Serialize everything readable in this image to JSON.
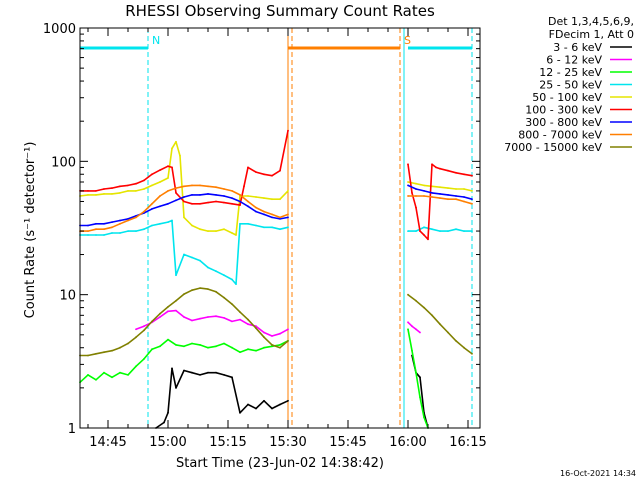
{
  "chart_data": {
    "type": "line",
    "title": "RHESSI Observing Summary Count Rates",
    "xlabel": "Start Time (23-Jun-02 14:38:42)",
    "ylabel": "Count Rate (s⁻¹ detector⁻¹)",
    "yscale": "log",
    "ylim": [
      1,
      1000
    ],
    "xlim": [
      "14:38",
      "16:18"
    ],
    "x_ticks": [
      "14:45",
      "15:00",
      "15:15",
      "15:30",
      "15:45",
      "16:00",
      "16:15"
    ],
    "y_ticks": [
      "1",
      "10",
      "100",
      "1000"
    ],
    "legend_header": [
      "Det 1,3,4,5,6,9,",
      "FDecim 1, Att 0"
    ],
    "legend_position": "outside-right",
    "timestamp": "16-Oct-2021 14:34",
    "flag_bars": [
      {
        "label": "N",
        "start": "14:38",
        "end": "14:55",
        "color": "#00e5ee"
      },
      {
        "label": "S",
        "start": "15:30",
        "end": "15:58",
        "color": "#ff7f00"
      },
      {
        "label": "",
        "start": "16:00",
        "end": "16:16",
        "color": "#00e5ee"
      }
    ],
    "vertical_lines": [
      {
        "x": "14:38",
        "color": "#00e5ee",
        "style": "solid"
      },
      {
        "x": "14:55",
        "color": "#00e5ee",
        "style": "dashed"
      },
      {
        "x": "15:30",
        "color": "#ff7f00",
        "style": "solid"
      },
      {
        "x": "15:31",
        "color": "#ff7f00",
        "style": "dashed"
      },
      {
        "x": "15:58",
        "color": "#ff7f00",
        "style": "dashed"
      },
      {
        "x": "15:59",
        "color": "#00e5ee",
        "style": "solid"
      },
      {
        "x": "16:16",
        "color": "#00e5ee",
        "style": "dashed"
      }
    ],
    "series": [
      {
        "name": "3 - 6 keV",
        "color": "#000000",
        "segments": [
          {
            "x": [
              "14:57",
              "14:59",
              "15:00",
              "15:01",
              "15:02",
              "15:04",
              "15:06",
              "15:08",
              "15:10",
              "15:12",
              "15:14",
              "15:16",
              "15:18",
              "15:20",
              "15:22",
              "15:24",
              "15:26",
              "15:28",
              "15:30"
            ],
            "y": [
              1,
              1.1,
              1.3,
              2.8,
              2,
              2.7,
              2.6,
              2.5,
              2.6,
              2.6,
              2.5,
              2.4,
              1.3,
              1.5,
              1.4,
              1.6,
              1.4,
              1.5,
              1.6
            ]
          },
          {
            "x": [
              "16:01",
              "16:02",
              "16:03",
              "16:04",
              "16:05"
            ],
            "y": [
              3.5,
              2.6,
              2.4,
              1.3,
              1
            ]
          }
        ]
      },
      {
        "name": "6 - 12 keV",
        "color": "#ff00ff",
        "segments": [
          {
            "x": [
              "14:52",
              "14:54",
              "14:56",
              "14:58",
              "15:00",
              "15:02",
              "15:04",
              "15:06",
              "15:08",
              "15:10",
              "15:12",
              "15:14",
              "15:16",
              "15:18",
              "15:20",
              "15:22",
              "15:24",
              "15:26",
              "15:28",
              "15:30"
            ],
            "y": [
              5.5,
              5.8,
              6.2,
              6.8,
              7.5,
              7.6,
              6.8,
              6.4,
              6.6,
              6.8,
              6.9,
              6.7,
              6.3,
              6.5,
              6.0,
              5.8,
              5.2,
              4.9,
              5.1,
              5.5
            ]
          },
          {
            "x": [
              "16:00",
              "16:01",
              "16:02",
              "16:03"
            ],
            "y": [
              6.2,
              5.8,
              5.5,
              5.2
            ]
          }
        ]
      },
      {
        "name": "12 - 25 keV",
        "color": "#00ff00",
        "segments": [
          {
            "x": [
              "14:38",
              "14:40",
              "14:42",
              "14:44",
              "14:46",
              "14:48",
              "14:50",
              "14:52",
              "14:54",
              "14:56",
              "14:58",
              "15:00",
              "15:02",
              "15:04",
              "15:06",
              "15:08",
              "15:10",
              "15:12",
              "15:14",
              "15:16",
              "15:18",
              "15:20",
              "15:22",
              "15:24",
              "15:26",
              "15:28",
              "15:30"
            ],
            "y": [
              2.2,
              2.5,
              2.3,
              2.6,
              2.4,
              2.6,
              2.5,
              2.9,
              3.3,
              3.9,
              4.1,
              4.6,
              4.2,
              4.1,
              4.3,
              4.2,
              4.0,
              4.1,
              4.3,
              4.0,
              3.7,
              3.9,
              3.8,
              4.0,
              4.1,
              4.2,
              4.5
            ]
          },
          {
            "x": [
              "16:00",
              "16:01",
              "16:02",
              "16:03",
              "16:04",
              "16:05"
            ],
            "y": [
              5.5,
              3.8,
              2.6,
              1.7,
              1.2,
              1.0
            ]
          }
        ]
      },
      {
        "name": "25 - 50 keV",
        "color": "#00e5ee",
        "segments": [
          {
            "x": [
              "14:38",
              "14:40",
              "14:42",
              "14:44",
              "14:46",
              "14:48",
              "14:50",
              "14:52",
              "14:54",
              "14:56",
              "14:58",
              "15:00",
              "15:01",
              "15:02",
              "15:04",
              "15:06",
              "15:08",
              "15:10",
              "15:12",
              "15:14",
              "15:16",
              "15:17",
              "15:18",
              "15:20",
              "15:22",
              "15:24",
              "15:26",
              "15:28",
              "15:30"
            ],
            "y": [
              28,
              28,
              28,
              28,
              29,
              29,
              30,
              30,
              31,
              33,
              34,
              35,
              36,
              14,
              20,
              19,
              18,
              16,
              15,
              14,
              13,
              12,
              34,
              34,
              33,
              32,
              32,
              31,
              32
            ]
          },
          {
            "x": [
              "16:00",
              "16:02",
              "16:04",
              "16:06",
              "16:08",
              "16:10",
              "16:12",
              "16:14",
              "16:16"
            ],
            "y": [
              30,
              30,
              32,
              31,
              30,
              30,
              31,
              30,
              30
            ]
          }
        ]
      },
      {
        "name": "50 - 100 keV",
        "color": "#e5e500",
        "segments": [
          {
            "x": [
              "14:38",
              "14:40",
              "14:42",
              "14:44",
              "14:46",
              "14:48",
              "14:50",
              "14:52",
              "14:54",
              "14:56",
              "14:58",
              "15:00",
              "15:01",
              "15:02",
              "15:03",
              "15:04",
              "15:06",
              "15:08",
              "15:10",
              "15:12",
              "15:14",
              "15:16",
              "15:17",
              "15:18",
              "15:20",
              "15:22",
              "15:24",
              "15:26",
              "15:28",
              "15:30"
            ],
            "y": [
              55,
              56,
              56,
              57,
              57,
              58,
              60,
              60,
              62,
              66,
              70,
              75,
              125,
              140,
              110,
              38,
              33,
              31,
              30,
              30,
              31,
              29,
              28,
              55,
              55,
              54,
              53,
              52,
              52,
              60
            ]
          },
          {
            "x": [
              "16:00",
              "16:02",
              "16:04",
              "16:06",
              "16:08",
              "16:10",
              "16:12",
              "16:14",
              "16:16"
            ],
            "y": [
              70,
              68,
              66,
              65,
              64,
              63,
              62,
              62,
              60
            ]
          }
        ]
      },
      {
        "name": "100 - 300 keV",
        "color": "#ff0000",
        "segments": [
          {
            "x": [
              "14:38",
              "14:40",
              "14:42",
              "14:44",
              "14:46",
              "14:48",
              "14:50",
              "14:52",
              "14:54",
              "14:56",
              "14:58",
              "15:00",
              "15:01",
              "15:02",
              "15:04",
              "15:06",
              "15:08",
              "15:10",
              "15:12",
              "15:14",
              "15:16",
              "15:18",
              "15:19",
              "15:20",
              "15:22",
              "15:24",
              "15:26",
              "15:28",
              "15:30"
            ],
            "y": [
              60,
              60,
              60,
              62,
              63,
              65,
              66,
              68,
              72,
              80,
              86,
              92,
              90,
              58,
              50,
              48,
              48,
              49,
              50,
              49,
              48,
              47,
              65,
              90,
              83,
              80,
              78,
              85,
              170
            ]
          },
          {
            "x": [
              "16:00",
              "16:01",
              "16:02",
              "16:03",
              "16:04",
              "16:05",
              "16:06",
              "16:07",
              "16:08",
              "16:10",
              "16:12",
              "16:14",
              "16:16"
            ],
            "y": [
              95,
              58,
              45,
              30,
              28,
              26,
              95,
              90,
              88,
              85,
              82,
              80,
              78
            ]
          }
        ]
      },
      {
        "name": "300 - 800 keV",
        "color": "#0000ff",
        "segments": [
          {
            "x": [
              "14:38",
              "14:40",
              "14:42",
              "14:44",
              "14:46",
              "14:48",
              "14:50",
              "14:52",
              "14:54",
              "14:56",
              "14:58",
              "15:00",
              "15:02",
              "15:04",
              "15:06",
              "15:08",
              "15:10",
              "15:12",
              "15:14",
              "15:16",
              "15:18",
              "15:20",
              "15:22",
              "15:24",
              "15:26",
              "15:28",
              "15:30"
            ],
            "y": [
              33,
              33,
              34,
              34,
              35,
              36,
              37,
              39,
              41,
              44,
              46,
              48,
              51,
              54,
              56,
              56,
              57,
              56,
              55,
              53,
              50,
              46,
              42,
              40,
              38,
              37,
              38
            ]
          },
          {
            "x": [
              "16:00",
              "16:02",
              "16:04",
              "16:06",
              "16:08",
              "16:10",
              "16:12",
              "16:14",
              "16:16"
            ],
            "y": [
              66,
              62,
              60,
              58,
              57,
              56,
              55,
              54,
              52
            ]
          }
        ]
      },
      {
        "name": "800 - 7000 keV",
        "color": "#ff7f00",
        "segments": [
          {
            "x": [
              "14:38",
              "14:40",
              "14:42",
              "14:44",
              "14:46",
              "14:48",
              "14:50",
              "14:52",
              "14:54",
              "14:56",
              "14:58",
              "15:00",
              "15:02",
              "15:04",
              "15:06",
              "15:08",
              "15:10",
              "15:12",
              "15:14",
              "15:16",
              "15:18",
              "15:20",
              "15:22",
              "15:24",
              "15:26",
              "15:28",
              "15:30"
            ],
            "y": [
              30,
              30,
              31,
              31,
              32,
              34,
              36,
              38,
              42,
              48,
              55,
              60,
              63,
              65,
              66,
              66,
              65,
              64,
              62,
              60,
              56,
              50,
              45,
              42,
              40,
              38,
              40
            ]
          },
          {
            "x": [
              "16:00",
              "16:02",
              "16:04",
              "16:06",
              "16:08",
              "16:10",
              "16:12",
              "16:14",
              "16:16"
            ],
            "y": [
              55,
              55,
              55,
              54,
              53,
              52,
              52,
              50,
              48
            ]
          }
        ]
      },
      {
        "name": "7000 - 15000 keV",
        "color": "#808000",
        "segments": [
          {
            "x": [
              "14:38",
              "14:40",
              "14:42",
              "14:44",
              "14:46",
              "14:48",
              "14:50",
              "14:52",
              "14:54",
              "14:56",
              "14:58",
              "15:00",
              "15:02",
              "15:04",
              "15:06",
              "15:08",
              "15:10",
              "15:12",
              "15:14",
              "15:16",
              "15:18",
              "15:20",
              "15:22",
              "15:24",
              "15:26",
              "15:28",
              "15:30"
            ],
            "y": [
              3.5,
              3.5,
              3.6,
              3.7,
              3.8,
              4.0,
              4.3,
              4.8,
              5.4,
              6.3,
              7.2,
              8.1,
              9.0,
              10.1,
              10.8,
              11.2,
              11.0,
              10.5,
              9.5,
              8.5,
              7.4,
              6.5,
              5.6,
              4.8,
              4.2,
              4.0,
              4.5
            ]
          },
          {
            "x": [
              "16:00",
              "16:02",
              "16:04",
              "16:06",
              "16:08",
              "16:10",
              "16:12",
              "16:14",
              "16:16"
            ],
            "y": [
              10.0,
              9.0,
              8.0,
              7.0,
              6.0,
              5.2,
              4.5,
              4.0,
              3.6
            ]
          }
        ]
      }
    ]
  }
}
